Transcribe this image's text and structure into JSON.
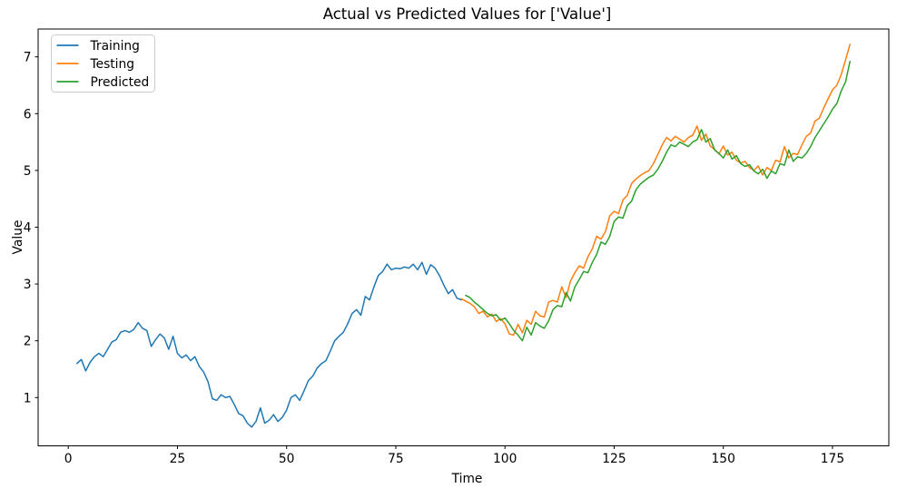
{
  "chart_data": {
    "type": "line",
    "title": "Actual vs Predicted Values for ['Value']",
    "xlabel": "Time",
    "ylabel": "Value",
    "xlim": [
      -6.9,
      187.9
    ],
    "ylim": [
      0.15,
      7.49
    ],
    "xticks": [
      0,
      25,
      50,
      75,
      100,
      125,
      150,
      175
    ],
    "yticks": [
      1,
      2,
      3,
      4,
      5,
      6,
      7
    ],
    "grid": false,
    "legend_position": "upper left",
    "background_color": "#ffffff",
    "spine_color": "#000000",
    "legend_border_color": "#cccccc",
    "series": [
      {
        "name": "Training",
        "color": "#1f77b4",
        "x_start": 2,
        "values": [
          1.6,
          1.67,
          1.47,
          1.62,
          1.72,
          1.78,
          1.72,
          1.85,
          1.98,
          2.02,
          2.15,
          2.18,
          2.15,
          2.2,
          2.32,
          2.22,
          2.18,
          1.9,
          2.02,
          2.12,
          2.05,
          1.85,
          2.08,
          1.78,
          1.7,
          1.75,
          1.65,
          1.72,
          1.55,
          1.45,
          1.28,
          0.98,
          0.95,
          1.05,
          1.0,
          1.02,
          0.88,
          0.72,
          0.68,
          0.55,
          0.48,
          0.58,
          0.82,
          0.55,
          0.6,
          0.7,
          0.58,
          0.65,
          0.78,
          1.0,
          1.05,
          0.95,
          1.12,
          1.3,
          1.38,
          1.52,
          1.6,
          1.65,
          1.82,
          2.0,
          2.08,
          2.15,
          2.3,
          2.48,
          2.55,
          2.45,
          2.78,
          2.72,
          2.95,
          3.15,
          3.22,
          3.35,
          3.25,
          3.28,
          3.27,
          3.3,
          3.28,
          3.35,
          3.25,
          3.38,
          3.17,
          3.34,
          3.28,
          3.15,
          2.98,
          2.83,
          2.9,
          2.75,
          2.72
        ]
      },
      {
        "name": "Testing",
        "color": "#ff7f0e",
        "x_start": 90,
        "values": [
          2.74,
          2.7,
          2.66,
          2.6,
          2.48,
          2.52,
          2.42,
          2.47,
          2.34,
          2.39,
          2.3,
          2.12,
          2.1,
          2.29,
          2.14,
          2.36,
          2.29,
          2.52,
          2.44,
          2.42,
          2.68,
          2.71,
          2.68,
          2.95,
          2.76,
          3.05,
          3.2,
          3.32,
          3.28,
          3.48,
          3.62,
          3.84,
          3.79,
          3.92,
          4.2,
          4.28,
          4.24,
          4.48,
          4.56,
          4.77,
          4.85,
          4.91,
          4.96,
          5.0,
          5.12,
          5.28,
          5.45,
          5.58,
          5.52,
          5.6,
          5.55,
          5.5,
          5.58,
          5.62,
          5.78,
          5.53,
          5.64,
          5.43,
          5.37,
          5.29,
          5.43,
          5.27,
          5.32,
          5.18,
          5.13,
          5.16,
          5.05,
          5.0,
          5.08,
          4.92,
          5.05,
          5.0,
          5.18,
          5.15,
          5.42,
          5.22,
          5.3,
          5.28,
          5.45,
          5.6,
          5.66,
          5.87,
          5.92,
          6.1,
          6.26,
          6.42,
          6.5,
          6.69,
          6.95,
          7.22
        ]
      },
      {
        "name": "Predicted",
        "color": "#2ca02c",
        "x_start": 91,
        "values": [
          2.8,
          2.76,
          2.68,
          2.62,
          2.55,
          2.48,
          2.44,
          2.46,
          2.36,
          2.4,
          2.3,
          2.18,
          2.1,
          2.0,
          2.24,
          2.1,
          2.32,
          2.26,
          2.22,
          2.35,
          2.55,
          2.62,
          2.6,
          2.85,
          2.7,
          2.95,
          3.08,
          3.22,
          3.2,
          3.38,
          3.52,
          3.74,
          3.7,
          3.84,
          4.1,
          4.18,
          4.16,
          4.38,
          4.46,
          4.66,
          4.76,
          4.82,
          4.88,
          4.92,
          5.02,
          5.16,
          5.32,
          5.45,
          5.42,
          5.5,
          5.46,
          5.42,
          5.5,
          5.54,
          5.72,
          5.5,
          5.56,
          5.36,
          5.3,
          5.22,
          5.36,
          5.2,
          5.26,
          5.12,
          5.07,
          5.1,
          4.99,
          4.94,
          5.02,
          4.86,
          4.99,
          4.94,
          5.12,
          5.09,
          5.36,
          5.16,
          5.24,
          5.22,
          5.3,
          5.42,
          5.58,
          5.7,
          5.82,
          5.94,
          6.08,
          6.18,
          6.4,
          6.56,
          6.92
        ]
      }
    ]
  }
}
